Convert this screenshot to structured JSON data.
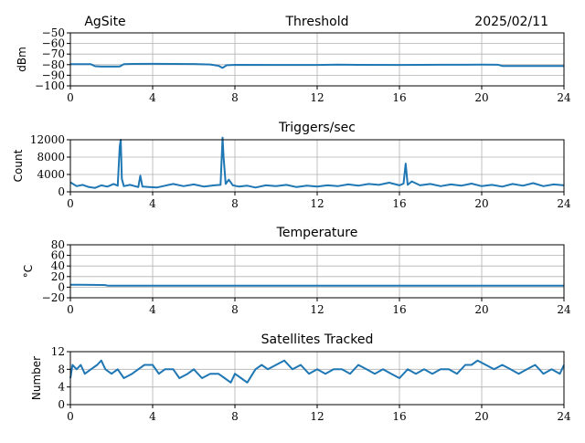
{
  "header": {
    "site": "AgSite",
    "date": "2025/02/11"
  },
  "chart_data": [
    {
      "type": "line",
      "title": "Threshold",
      "ylabel": "dBm",
      "xlim": [
        0,
        24
      ],
      "ylim": [
        -100,
        -50
      ],
      "xticks": [
        0,
        4,
        8,
        12,
        16,
        20,
        24
      ],
      "yticks": [
        -100,
        -90,
        -80,
        -70,
        -60,
        -50
      ],
      "ytick_labels": [
        "−100",
        "−90",
        "−80",
        "−70",
        "−60",
        "−50"
      ],
      "grid": true,
      "color": "#1f77b4",
      "x": [
        0,
        0.5,
        1.0,
        1.2,
        1.5,
        2.0,
        2.4,
        2.6,
        3.0,
        4.0,
        5.0,
        6.0,
        6.8,
        7.2,
        7.4,
        7.6,
        8.0,
        10.0,
        12.0,
        13.0,
        14.0,
        16.0,
        18.0,
        20.0,
        20.8,
        21.0,
        21.2,
        22.0,
        24.0
      ],
      "y": [
        -79.5,
        -79.5,
        -79.6,
        -81.5,
        -81.8,
        -81.8,
        -81.7,
        -79.5,
        -79.3,
        -79.2,
        -79.3,
        -79.4,
        -79.8,
        -81,
        -83,
        -80.5,
        -80.2,
        -80.3,
        -80.3,
        -79.9,
        -80.2,
        -80.3,
        -80.1,
        -80.0,
        -80.1,
        -81.2,
        -81.3,
        -81.3,
        -81.3
      ]
    },
    {
      "type": "line",
      "title": "Triggers/sec",
      "ylabel": "Count",
      "xlim": [
        0,
        24
      ],
      "ylim": [
        0,
        12000
      ],
      "xticks": [
        0,
        4,
        8,
        12,
        16,
        20,
        24
      ],
      "yticks": [
        0,
        4000,
        8000,
        12000
      ],
      "ytick_labels": [
        "0",
        "4000",
        "8000",
        "12000"
      ],
      "grid": true,
      "color": "#1f77b4",
      "x": [
        0,
        0.3,
        0.6,
        0.9,
        1.2,
        1.5,
        1.8,
        2.1,
        2.3,
        2.4,
        2.45,
        2.5,
        2.6,
        2.9,
        3.3,
        3.4,
        3.5,
        3.8,
        4.2,
        4.6,
        5.0,
        5.5,
        6.0,
        6.5,
        7.0,
        7.3,
        7.4,
        7.45,
        7.55,
        7.7,
        7.9,
        8.2,
        8.6,
        9.0,
        9.5,
        10.0,
        10.5,
        11.0,
        11.5,
        12.0,
        12.5,
        13.0,
        13.5,
        14.0,
        14.5,
        15.0,
        15.5,
        16.0,
        16.2,
        16.3,
        16.4,
        16.6,
        17.0,
        17.5,
        18.0,
        18.5,
        19.0,
        19.5,
        20.0,
        20.5,
        21.0,
        21.5,
        22.0,
        22.5,
        23.0,
        23.5,
        24.0
      ],
      "y": [
        2200,
        1300,
        1600,
        1100,
        900,
        1500,
        1200,
        1800,
        1400,
        10500,
        12000,
        3000,
        1300,
        1600,
        1100,
        3700,
        1200,
        1100,
        1000,
        1400,
        1800,
        1300,
        1700,
        1200,
        1500,
        1600,
        12500,
        8000,
        1800,
        2800,
        1500,
        1200,
        1400,
        1000,
        1500,
        1300,
        1600,
        1100,
        1400,
        1200,
        1500,
        1300,
        1700,
        1400,
        1800,
        1600,
        2100,
        1500,
        1900,
        6500,
        1600,
        2400,
        1500,
        1800,
        1300,
        1700,
        1400,
        1900,
        1300,
        1600,
        1200,
        1800,
        1400,
        2000,
        1300,
        1700,
        1500
      ]
    },
    {
      "type": "line",
      "title": "Temperature",
      "ylabel": "°C",
      "xlim": [
        0,
        24
      ],
      "ylim": [
        -20,
        80
      ],
      "xticks": [
        0,
        4,
        8,
        12,
        16,
        20,
        24
      ],
      "yticks": [
        -20,
        0,
        20,
        40,
        60,
        80
      ],
      "ytick_labels": [
        "−20",
        "0",
        "20",
        "40",
        "60",
        "80"
      ],
      "grid": true,
      "color": "#1f77b4",
      "x": [
        0,
        0.5,
        1.0,
        1.5,
        1.7,
        1.8,
        4,
        8,
        12,
        16,
        20,
        24
      ],
      "y": [
        4.5,
        4.5,
        4.3,
        4.2,
        4.0,
        3.0,
        3.0,
        3.0,
        3.0,
        3.0,
        3.0,
        3.0
      ]
    },
    {
      "type": "line",
      "title": "Satellites Tracked",
      "ylabel": "Number",
      "xlim": [
        0,
        24
      ],
      "ylim": [
        0,
        12
      ],
      "xticks": [
        0,
        4,
        8,
        12,
        16,
        20,
        24
      ],
      "yticks": [
        0,
        4,
        8,
        12
      ],
      "ytick_labels": [
        "0",
        "4",
        "8",
        "12"
      ],
      "grid": true,
      "color": "#1f77b4",
      "x": [
        0,
        0.1,
        0.3,
        0.5,
        0.7,
        1.0,
        1.3,
        1.5,
        1.7,
        2.0,
        2.3,
        2.6,
        3.0,
        3.3,
        3.6,
        4.0,
        4.3,
        4.6,
        5.0,
        5.3,
        5.7,
        6.0,
        6.4,
        6.8,
        7.2,
        7.5,
        7.8,
        8.0,
        8.3,
        8.6,
        9.0,
        9.3,
        9.6,
        10.0,
        10.4,
        10.8,
        11.2,
        11.6,
        12.0,
        12.4,
        12.8,
        13.2,
        13.6,
        14.0,
        14.4,
        14.8,
        15.2,
        15.6,
        16.0,
        16.4,
        16.8,
        17.2,
        17.6,
        18.0,
        18.4,
        18.8,
        19.2,
        19.5,
        19.8,
        20.2,
        20.6,
        21.0,
        21.4,
        21.8,
        22.2,
        22.6,
        23.0,
        23.4,
        23.8,
        24.0
      ],
      "y": [
        6,
        9,
        8,
        9,
        7,
        8,
        9,
        10,
        8,
        7,
        8,
        6,
        7,
        8,
        9,
        9,
        7,
        8,
        8,
        6,
        7,
        8,
        6,
        7,
        7,
        6,
        5,
        7,
        6,
        5,
        8,
        9,
        8,
        9,
        10,
        8,
        9,
        7,
        8,
        7,
        8,
        8,
        7,
        9,
        8,
        7,
        8,
        7,
        6,
        8,
        7,
        8,
        7,
        8,
        8,
        7,
        9,
        9,
        10,
        9,
        8,
        9,
        8,
        7,
        8,
        9,
        7,
        8,
        7,
        9
      ]
    }
  ]
}
